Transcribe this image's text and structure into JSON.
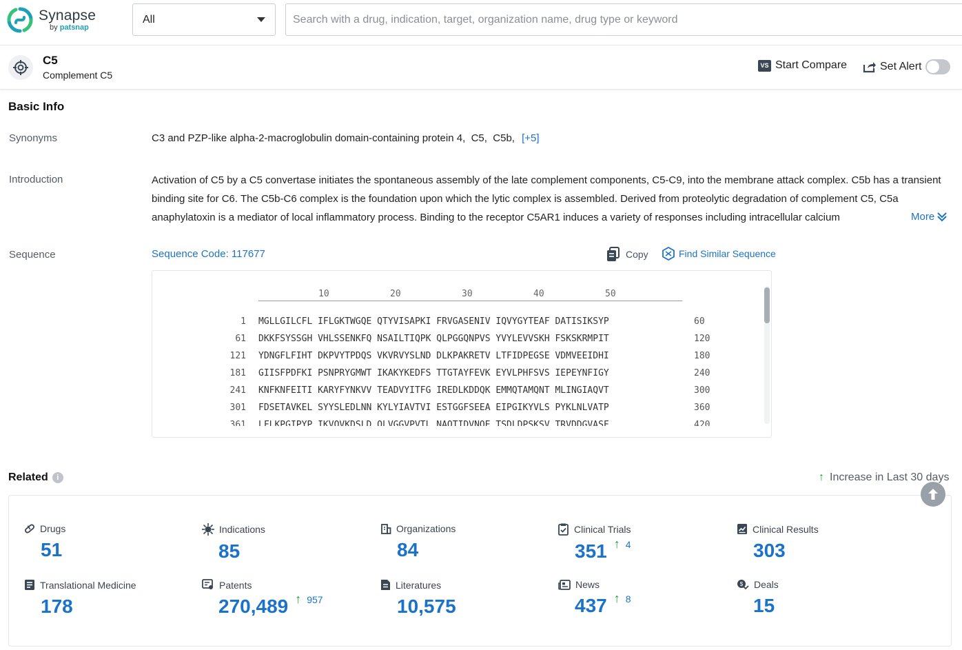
{
  "app": {
    "name": "Synapse",
    "by": "by",
    "brand": "patsnap"
  },
  "search": {
    "scope": "All",
    "placeholder": "Search with a drug, indication, target, organization name, drug type or keyword"
  },
  "entity": {
    "title": "C5",
    "subtitle": "Complement C5",
    "compare_badge": "VS",
    "compare_label": "Start Compare",
    "alert_label": "Set Alert",
    "alert_enabled": false
  },
  "basic_info": {
    "title": "Basic Info",
    "synonyms_label": "Synonyms",
    "synonyms": "C3 and PZP-like alpha-2-macroglobulin domain-containing protein 4,  C5,  C5b,",
    "synonyms_more": "[+5]",
    "introduction_label": "Introduction",
    "introduction": "Activation of C5 by a C5 convertase initiates the spontaneous assembly of the late complement components, C5-C9, into the membrane attack complex. C5b has a transient binding site for C6. The C5b-C6 complex is the foundation upon which the lytic complex is assembled. Derived from proteolytic degradation of complement C5, C5a anaphylatoxin is a mediator of local inflammatory process. Binding to the receptor C5AR1 induces a variety of responses including intracellular calcium",
    "more_label": "More",
    "sequence_label": "Sequence",
    "sequence_code": "Sequence Code: 117677",
    "copy_label": "Copy",
    "similar_label": "Find Similar Sequence"
  },
  "sequence": {
    "ruler": [
      "10",
      "20",
      "30",
      "40",
      "50"
    ],
    "rows": [
      {
        "start": "1",
        "residues": "MGLLGILCFL IFLGKTWGQE QTYVISAPKI FRVGASENIV IQVYGYTEAF DATISIKSYP",
        "end": "60"
      },
      {
        "start": "61",
        "residues": "DKKFSYSSGH VHLSSENKFQ NSAILTIQPK QLPGGQNPVS YVYLEVVSKH FSKSKRMPIT",
        "end": "120"
      },
      {
        "start": "121",
        "residues": "YDNGFLFIHT DKPVYTPDQS VKVRVYSLND DLKPAKRETV LTFIDPEGSE VDMVEEIDHI",
        "end": "180"
      },
      {
        "start": "181",
        "residues": "GIISFPDFKI PSNPRYGMWT IKAKYKEDFS TTGTAYFEVK EYVLPHFSVS IEPEYNFIGY",
        "end": "240"
      },
      {
        "start": "241",
        "residues": "KNFKNFEITI KARYFYNKVV TEADVYITFG IREDLKDDQK EMMQTAMQNT MLINGIAQVT",
        "end": "300"
      },
      {
        "start": "301",
        "residues": "FDSETAVKEL SYYSLEDLNN KYLYIAVTVI ESTGGFSEEA EIPGIKYVLS PYKLNLVATP",
        "end": "360"
      },
      {
        "start": "361",
        "residues": "LFLKPGIPYP IKVQVKDSLD QLVGGVPVTL NAQTIDVNQE TSDLDPSKSV TRVDDGVASF",
        "end": "420"
      }
    ]
  },
  "related": {
    "title": "Related",
    "info": "i",
    "legend_label": "Increase in Last 30 days",
    "increase_color": "#1e9e3a",
    "value_color": "#1a73c8",
    "stats": [
      {
        "label": "Drugs",
        "icon": "pill-icon",
        "value": "51",
        "increase": ""
      },
      {
        "label": "Indications",
        "icon": "virus-icon",
        "value": "85",
        "increase": ""
      },
      {
        "label": "Organizations",
        "icon": "building-icon",
        "value": "84",
        "increase": ""
      },
      {
        "label": "Clinical Trials",
        "icon": "clipboard-icon",
        "value": "351",
        "increase": "4"
      },
      {
        "label": "Clinical Results",
        "icon": "chart-report-icon",
        "value": "303",
        "increase": ""
      },
      {
        "label": "Translational Medicine",
        "icon": "flask-doc-icon",
        "value": "178",
        "increase": ""
      },
      {
        "label": "Patents",
        "icon": "patent-icon",
        "value": "270,489",
        "increase": "957"
      },
      {
        "label": "Literatures",
        "icon": "document-icon",
        "value": "10,575",
        "increase": ""
      },
      {
        "label": "News",
        "icon": "newspaper-icon",
        "value": "437",
        "increase": "8"
      },
      {
        "label": "Deals",
        "icon": "handshake-icon",
        "value": "15",
        "increase": ""
      }
    ]
  }
}
